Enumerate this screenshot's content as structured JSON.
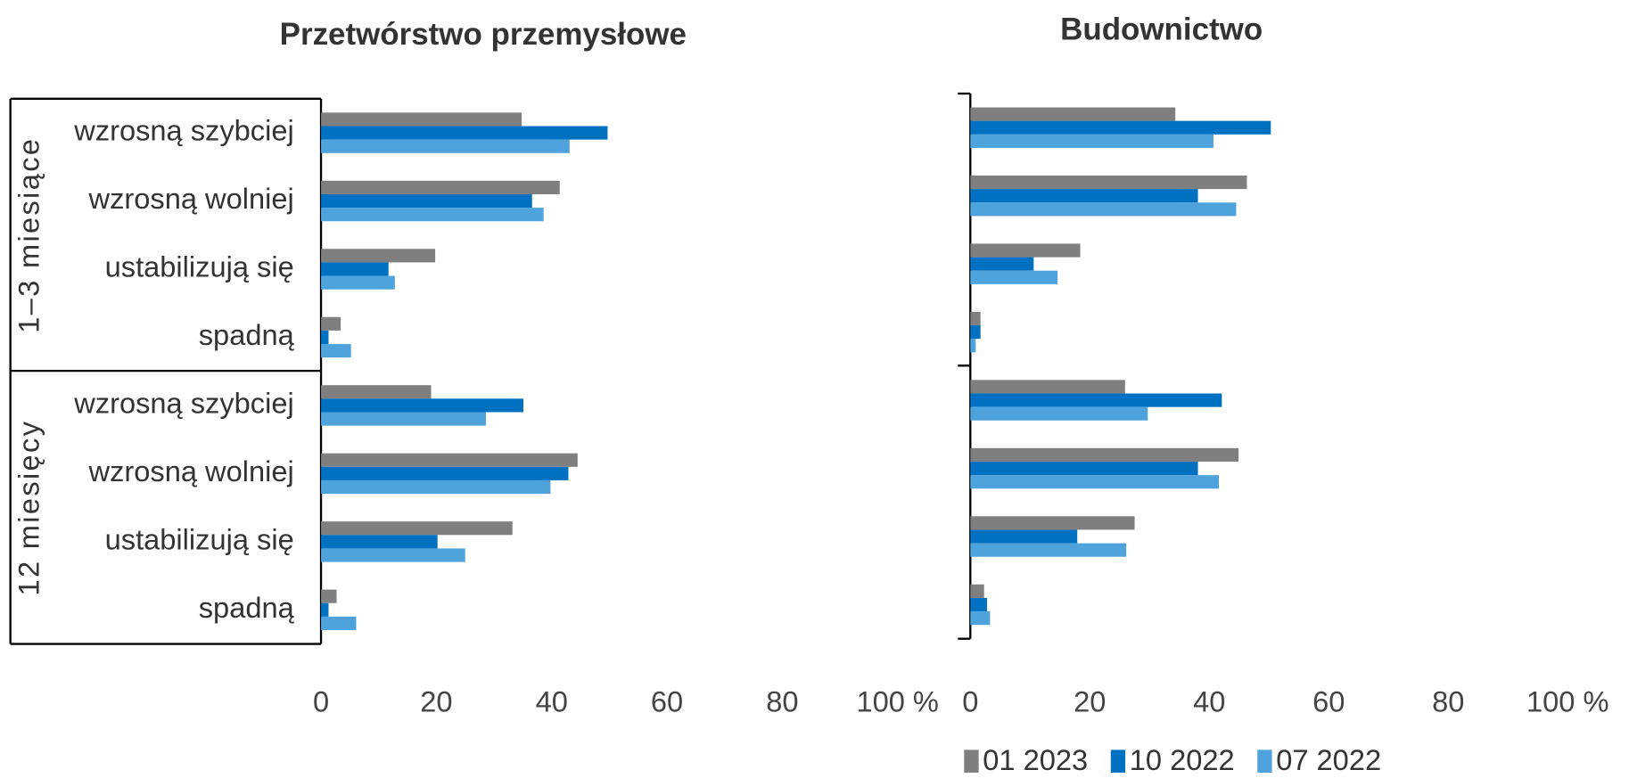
{
  "chart_data": [
    {
      "type": "barh",
      "title": "Przetwórstwo przemysłowe",
      "groups": [
        "1–3 miesiące",
        "12 miesięcy"
      ],
      "categories": [
        "wzrosną szybciej",
        "wzrosną wolniej",
        "ustabilizują się",
        "spadną",
        "wzrosną szybciej",
        "wzrosną wolniej",
        "ustabilizują się",
        "spadną"
      ],
      "series": [
        {
          "color": "#7f7f7f",
          "values": [
            34.8,
            41.4,
            19.8,
            3.4,
            19.1,
            44.5,
            33.2,
            2.7
          ]
        },
        {
          "color": "#0070c0",
          "values": [
            49.7,
            36.6,
            11.7,
            1.3,
            35.1,
            42.9,
            20.2,
            1.3
          ]
        },
        {
          "color": "#4ea3dc",
          "values": [
            43.1,
            38.6,
            12.8,
            5.2,
            28.6,
            39.8,
            25.0,
            6.1
          ]
        }
      ],
      "xlim": [
        0,
        100
      ],
      "xticks": [
        0,
        20,
        40,
        60,
        80,
        {
          "value": 100,
          "label": "100 %"
        }
      ]
    },
    {
      "type": "barh",
      "title": "Budownictwo",
      "categories": [
        null,
        null,
        null,
        null,
        null,
        null,
        null,
        null
      ],
      "series": [
        {
          "name": "01 2023",
          "color": "#7f7f7f",
          "values": [
            34.3,
            46.3,
            18.4,
            1.7,
            25.9,
            44.9,
            27.5,
            2.3
          ]
        },
        {
          "name": "10 2022",
          "color": "#0070c0",
          "values": [
            50.3,
            38.1,
            10.6,
            1.7,
            42.1,
            38.1,
            17.9,
            2.8
          ]
        },
        {
          "name": "07 2022",
          "color": "#4ea3dc",
          "values": [
            40.7,
            44.5,
            14.6,
            0.9,
            29.7,
            41.6,
            26.1,
            3.3
          ]
        }
      ],
      "xlim": [
        0,
        100
      ],
      "xticks": [
        0,
        20,
        40,
        60,
        80,
        {
          "value": 100,
          "label": "100 %"
        }
      ],
      "legend": "bottom"
    }
  ]
}
